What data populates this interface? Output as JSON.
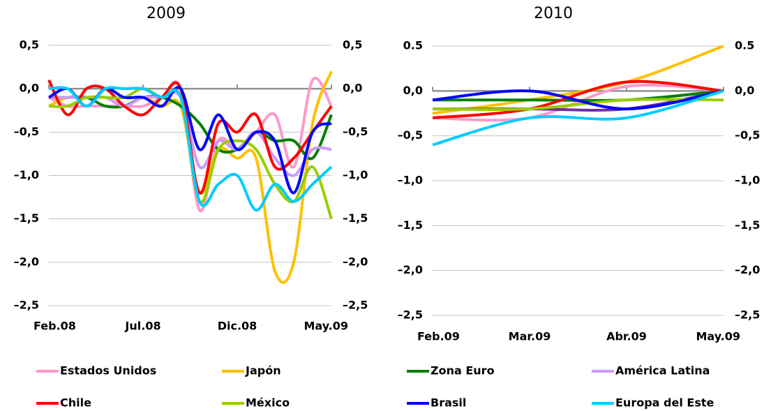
{
  "chart_data": [
    {
      "type": "line",
      "title": "2009",
      "categories": [
        "Feb.08",
        null,
        null,
        null,
        null,
        "Jul.08",
        null,
        null,
        null,
        null,
        "Dic.08",
        null,
        null,
        null,
        null,
        "May.09"
      ],
      "ylim": [
        -2.5,
        0.5
      ],
      "yticks": [
        {
          "value": -2.5,
          "label": "–2,5"
        },
        {
          "value": -2.0,
          "label": "–2,0"
        },
        {
          "value": -1.5,
          "label": "–1,5"
        },
        {
          "value": -1.0,
          "label": "–1,0"
        },
        {
          "value": -0.5,
          "label": "–0,5"
        },
        {
          "value": 0,
          "label": "0,0"
        },
        {
          "value": 0.5,
          "label": "0,5"
        }
      ],
      "grid": true,
      "series": [
        {
          "name": "Estados Unidos",
          "color": "#ff99cc",
          "values": [
            -0.1,
            -0.2,
            -0.2,
            -0.2,
            -0.2,
            -0.2,
            -0.1,
            0.0,
            -1.4,
            -0.6,
            -0.7,
            -0.5,
            -0.3,
            -0.9,
            0.1,
            -0.2
          ]
        },
        {
          "name": "Japón",
          "color": "#ffc000",
          "values": [
            -0.2,
            -0.1,
            -0.1,
            -0.1,
            -0.2,
            -0.1,
            -0.2,
            -0.2,
            -1.2,
            -0.7,
            -0.8,
            -0.8,
            -2.1,
            -2.0,
            -0.4,
            0.2
          ]
        },
        {
          "name": "Zona Euro",
          "color": "#008000",
          "values": [
            -0.1,
            -0.1,
            -0.1,
            -0.2,
            -0.2,
            -0.1,
            -0.1,
            -0.2,
            -0.4,
            -0.7,
            -0.7,
            -0.5,
            -0.6,
            -0.6,
            -0.8,
            -0.3
          ]
        },
        {
          "name": "América Latina",
          "color": "#cc99ff",
          "values": [
            -0.1,
            -0.1,
            -0.1,
            -0.1,
            -0.2,
            -0.1,
            -0.1,
            -0.1,
            -0.9,
            -0.6,
            -0.7,
            -0.5,
            -0.8,
            -1.0,
            -0.7,
            -0.7
          ]
        },
        {
          "name": "Chile",
          "color": "#ff0000",
          "values": [
            0.1,
            -0.3,
            0.0,
            0.0,
            -0.2,
            -0.3,
            -0.1,
            0.0,
            -1.2,
            -0.4,
            -0.5,
            -0.3,
            -0.9,
            -0.8,
            -0.5,
            -0.2
          ]
        },
        {
          "name": "México",
          "color": "#99cc00",
          "values": [
            -0.2,
            -0.2,
            -0.1,
            -0.1,
            -0.1,
            0.0,
            -0.1,
            -0.1,
            -1.3,
            -0.7,
            -0.6,
            -0.7,
            -1.1,
            -1.3,
            -0.9,
            -1.5
          ]
        },
        {
          "name": "Brasil",
          "color": "#0000ff",
          "values": [
            -0.1,
            0.0,
            -0.2,
            0.0,
            -0.1,
            -0.1,
            -0.2,
            0.0,
            -0.7,
            -0.3,
            -0.7,
            -0.5,
            -0.6,
            -1.2,
            -0.5,
            -0.4
          ]
        },
        {
          "name": "Europa del Este",
          "color": "#00ccff",
          "values": [
            0.0,
            0.0,
            -0.2,
            0.0,
            0.0,
            0.0,
            -0.1,
            -0.1,
            -1.3,
            -1.1,
            -1.0,
            -1.4,
            -1.1,
            -1.3,
            -1.1,
            -0.9
          ]
        }
      ]
    },
    {
      "type": "line",
      "title": "2010",
      "categories": [
        "Feb.09",
        "Mar.09",
        "Abr.09",
        "May.09"
      ],
      "ylim": [
        -2.5,
        0.5
      ],
      "yticks": [
        {
          "value": -2.5,
          "label": "–2,5"
        },
        {
          "value": -2.0,
          "label": "–2,0"
        },
        {
          "value": -1.5,
          "label": "–1,5"
        },
        {
          "value": -1.0,
          "label": "–1,0"
        },
        {
          "value": -0.5,
          "label": "–0,5"
        },
        {
          "value": 0,
          "label": "0,0"
        },
        {
          "value": 0.5,
          "label": "0.5"
        }
      ],
      "grid": true,
      "series": [
        {
          "name": "Estados Unidos",
          "color": "#ff99cc",
          "values": [
            -0.3,
            -0.3,
            0.05,
            0.0
          ]
        },
        {
          "name": "Japón",
          "color": "#ffc000",
          "values": [
            -0.25,
            -0.1,
            0.1,
            0.5
          ]
        },
        {
          "name": "Zona Euro",
          "color": "#008000",
          "values": [
            -0.1,
            -0.1,
            -0.1,
            0.0
          ]
        },
        {
          "name": "América Latina",
          "color": "#7030a0",
          "values": [
            -0.2,
            -0.2,
            -0.2,
            0.0
          ]
        },
        {
          "name": "Chile",
          "color": "#ff0000",
          "values": [
            -0.3,
            -0.2,
            0.1,
            0.0
          ]
        },
        {
          "name": "México",
          "color": "#99cc00",
          "values": [
            -0.2,
            -0.2,
            -0.1,
            -0.1
          ]
        },
        {
          "name": "Brasil",
          "color": "#0000ff",
          "values": [
            -0.1,
            0.0,
            -0.2,
            0.0
          ]
        },
        {
          "name": "Europa del Este",
          "color": "#00ccff",
          "values": [
            -0.6,
            -0.3,
            -0.3,
            0.0
          ]
        }
      ]
    }
  ]
}
